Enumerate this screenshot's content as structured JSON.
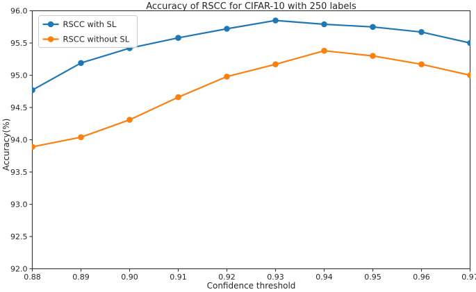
{
  "figure": {
    "background": "#ffffff"
  },
  "chart_data": {
    "type": "line",
    "title": "Accuracy of RSCC for CIFAR-10 with 250 labels",
    "xlabel": "Confidence threshold",
    "ylabel": "Accuracy(%)",
    "x": [
      0.88,
      0.89,
      0.9,
      0.91,
      0.92,
      0.93,
      0.94,
      0.95,
      0.96,
      0.97
    ],
    "x_tick_labels": [
      "0.88",
      "0.89",
      "0.90",
      "0.91",
      "0.92",
      "0.93",
      "0.94",
      "0.95",
      "0.96",
      "0.97"
    ],
    "y_ticks": [
      92.0,
      92.5,
      93.0,
      93.5,
      94.0,
      94.5,
      95.0,
      95.5,
      96.0
    ],
    "y_tick_labels": [
      "92.0",
      "92.5",
      "93.0",
      "93.5",
      "94.0",
      "94.5",
      "95.0",
      "95.5",
      "96.0"
    ],
    "xlim": [
      0.88,
      0.97
    ],
    "ylim": [
      92.0,
      96.0
    ],
    "grid": false,
    "legend_position": "upper-left",
    "series": [
      {
        "name": "RSCC with SL",
        "color": "#1f77b4",
        "values": [
          94.77,
          95.19,
          95.42,
          95.58,
          95.72,
          95.85,
          95.79,
          95.75,
          95.67,
          95.5
        ]
      },
      {
        "name": "RSCC without SL",
        "color": "#ff7f0e",
        "values": [
          93.89,
          94.04,
          94.31,
          94.66,
          94.98,
          95.17,
          95.38,
          95.3,
          95.17,
          95.0
        ]
      }
    ]
  },
  "style_colors": {
    "spine": "#3c3c3c",
    "tick": "#3c3c3c",
    "text": "#262626",
    "legend_border": "#cccccc",
    "legend_background": "#ffffff"
  }
}
